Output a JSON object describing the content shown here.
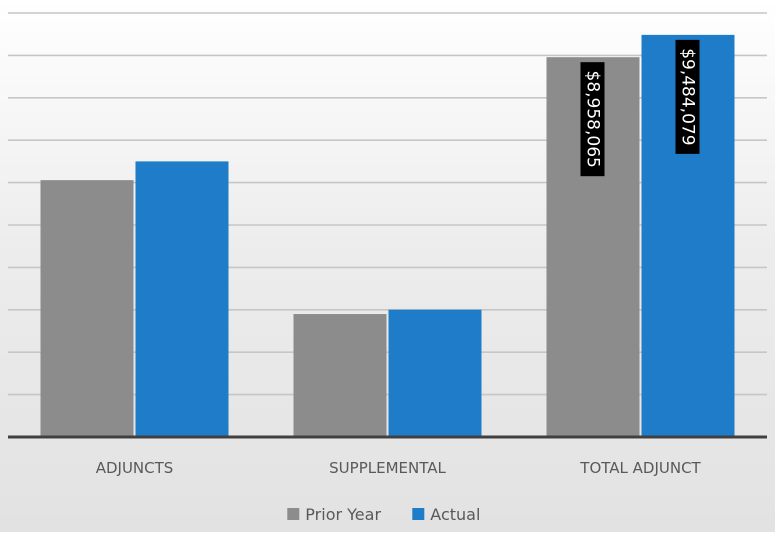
{
  "chart_data": {
    "type": "bar",
    "title": "",
    "xlabel": "",
    "ylabel": "",
    "categories": [
      "ADJUNCTS",
      "SUPPLEMENTAL",
      "TOTAL ADJUNCT"
    ],
    "series": [
      {
        "name": "Prior Year",
        "color": "#8c8c8c",
        "values": [
          6058000,
          2900000,
          8958065
        ]
      },
      {
        "name": "Actual",
        "color": "#1f7cc8",
        "values": [
          6500000,
          3003000,
          9484079
        ]
      }
    ],
    "data_labels": {
      "TOTAL ADJUNCT": [
        "$8,958,065",
        "$9,484,079"
      ]
    },
    "ylim": [
      0,
      10000000
    ],
    "y_tick_step": 1000000,
    "grid": true,
    "legend_position": "bottom"
  }
}
